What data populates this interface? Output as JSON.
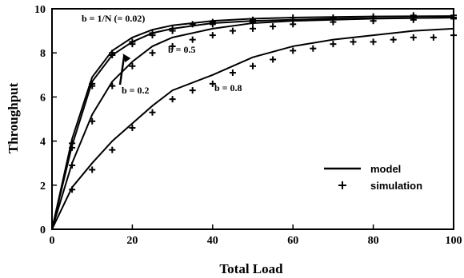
{
  "chart_data": {
    "type": "line",
    "title": "",
    "xlabel": "Total Load",
    "ylabel": "Throughput",
    "xlim": [
      0,
      100
    ],
    "ylim": [
      0,
      10
    ],
    "xticks": [
      0,
      20,
      40,
      60,
      80,
      100
    ],
    "yticks": [
      0,
      2,
      4,
      6,
      8,
      10
    ],
    "grid": false,
    "legend_position": "bottom-right",
    "legend": [
      {
        "label": "model",
        "marker": "line"
      },
      {
        "label": "simulation",
        "marker": "plus"
      }
    ],
    "series": [
      {
        "name": "b = 1/N (= 0.02)",
        "model": {
          "x": [
            0,
            5,
            10,
            15,
            20,
            25,
            30,
            40,
            50,
            60,
            70,
            80,
            90,
            100
          ],
          "y": [
            0,
            4.1,
            6.9,
            8.1,
            8.7,
            9.05,
            9.25,
            9.45,
            9.55,
            9.6,
            9.63,
            9.65,
            9.66,
            9.67
          ]
        },
        "simulation": {
          "x": [
            5,
            10,
            15,
            20,
            25,
            30,
            35,
            40,
            50,
            60,
            70,
            80,
            90,
            100
          ],
          "y": [
            3.9,
            6.6,
            8.0,
            8.5,
            8.9,
            9.1,
            9.3,
            9.4,
            9.5,
            9.6,
            9.6,
            9.65,
            9.7,
            9.7
          ]
        }
      },
      {
        "name": "b = 0.2",
        "model": {
          "x": [
            0,
            5,
            10,
            15,
            20,
            25,
            30,
            40,
            50,
            60,
            70,
            80,
            90,
            100
          ],
          "y": [
            0,
            3.8,
            6.7,
            7.9,
            8.5,
            8.9,
            9.1,
            9.35,
            9.45,
            9.5,
            9.55,
            9.57,
            9.58,
            9.6
          ]
        },
        "simulation": {
          "x": [
            5,
            10,
            15,
            20,
            25,
            30,
            40,
            50,
            60,
            70,
            80,
            90,
            100
          ],
          "y": [
            3.7,
            6.5,
            7.9,
            8.4,
            8.8,
            9.0,
            9.3,
            9.4,
            9.5,
            9.55,
            9.55,
            9.6,
            9.6
          ]
        }
      },
      {
        "name": "b = 0.5",
        "model": {
          "x": [
            0,
            5,
            10,
            15,
            20,
            25,
            30,
            40,
            50,
            60,
            70,
            80,
            90,
            100
          ],
          "y": [
            0,
            3.0,
            5.2,
            6.7,
            7.6,
            8.3,
            8.7,
            9.1,
            9.35,
            9.45,
            9.5,
            9.55,
            9.58,
            9.6
          ]
        },
        "simulation": {
          "x": [
            5,
            10,
            15,
            20,
            25,
            30,
            35,
            40,
            45,
            50,
            55,
            60,
            70,
            80,
            90,
            100
          ],
          "y": [
            2.9,
            4.9,
            6.5,
            7.4,
            8.0,
            8.3,
            8.6,
            8.8,
            9.0,
            9.1,
            9.2,
            9.3,
            9.4,
            9.45,
            9.5,
            9.55
          ]
        }
      },
      {
        "name": "b = 0.8",
        "model": {
          "x": [
            0,
            5,
            10,
            15,
            20,
            25,
            30,
            40,
            50,
            60,
            70,
            80,
            90,
            100
          ],
          "y": [
            0,
            1.9,
            3.0,
            4.0,
            4.8,
            5.6,
            6.3,
            7.0,
            7.8,
            8.3,
            8.6,
            8.8,
            9.0,
            9.1
          ]
        },
        "simulation": {
          "x": [
            5,
            10,
            15,
            20,
            25,
            30,
            35,
            40,
            45,
            50,
            55,
            60,
            65,
            70,
            75,
            80,
            85,
            90,
            95,
            100
          ],
          "y": [
            1.8,
            2.7,
            3.6,
            4.6,
            5.3,
            5.9,
            6.3,
            6.6,
            7.1,
            7.4,
            7.7,
            8.1,
            8.2,
            8.4,
            8.5,
            8.5,
            8.6,
            8.7,
            8.7,
            8.8
          ]
        }
      }
    ],
    "annotations": [
      {
        "text": "b = 1/N (= 0.02)",
        "series": "b = 1/N (= 0.02)"
      },
      {
        "text": "b = 0.2",
        "series": "b = 0.2"
      },
      {
        "text": "b = 0.5",
        "series": "b = 0.5"
      },
      {
        "text": "b = 0.8",
        "series": "b = 0.8"
      }
    ]
  }
}
